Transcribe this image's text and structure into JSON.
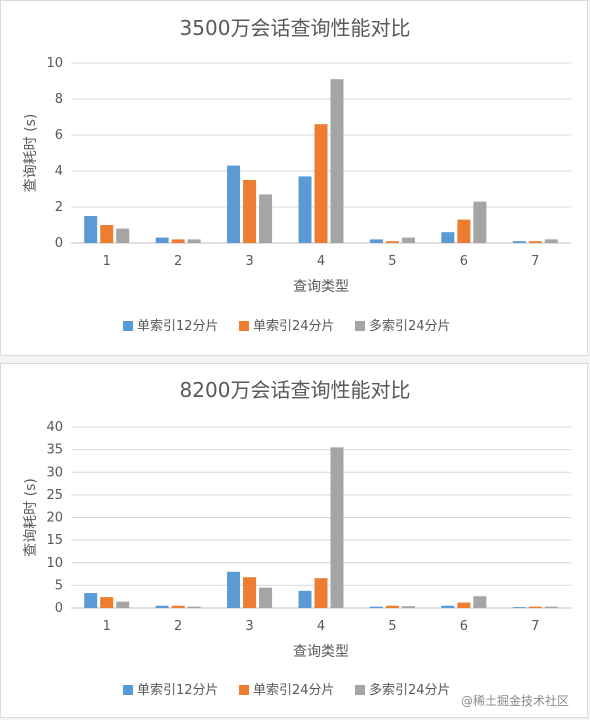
{
  "chart_data": [
    {
      "type": "bar",
      "title": "3500万会话查询性能对比",
      "xlabel": "查询类型",
      "ylabel": "查询耗时 (s)",
      "categories": [
        "1",
        "2",
        "3",
        "4",
        "5",
        "6",
        "7"
      ],
      "ylim": [
        0,
        10
      ],
      "yticks": [
        0,
        2,
        4,
        6,
        8,
        10
      ],
      "grid": true,
      "legend": "bottom",
      "series": [
        {
          "name": "单索引12分片",
          "color": "#5b9bd5",
          "values": [
            1.5,
            0.3,
            4.3,
            3.7,
            0.2,
            0.6,
            0.1
          ]
        },
        {
          "name": "单索引24分片",
          "color": "#ed7d31",
          "values": [
            1.0,
            0.2,
            3.5,
            6.6,
            0.1,
            1.3,
            0.1
          ]
        },
        {
          "name": "多索引24分片",
          "color": "#a5a5a5",
          "values": [
            0.8,
            0.2,
            2.7,
            9.1,
            0.3,
            2.3,
            0.2
          ]
        }
      ]
    },
    {
      "type": "bar",
      "title": "8200万会话查询性能对比",
      "xlabel": "查询类型",
      "ylabel": "查询耗时 (s)",
      "categories": [
        "1",
        "2",
        "3",
        "4",
        "5",
        "6",
        "7"
      ],
      "ylim": [
        0,
        40
      ],
      "yticks": [
        0,
        5,
        10,
        15,
        20,
        25,
        30,
        35,
        40
      ],
      "grid": true,
      "legend": "bottom",
      "series": [
        {
          "name": "单索引12分片",
          "color": "#5b9bd5",
          "values": [
            3.3,
            0.5,
            8.0,
            3.8,
            0.3,
            0.5,
            0.2
          ]
        },
        {
          "name": "单索引24分片",
          "color": "#ed7d31",
          "values": [
            2.4,
            0.5,
            6.8,
            6.6,
            0.5,
            1.2,
            0.3
          ]
        },
        {
          "name": "多索引24分片",
          "color": "#a5a5a5",
          "values": [
            1.4,
            0.3,
            4.5,
            35.5,
            0.4,
            2.6,
            0.3
          ]
        }
      ]
    }
  ],
  "watermark": "@稀土掘金技术社区"
}
